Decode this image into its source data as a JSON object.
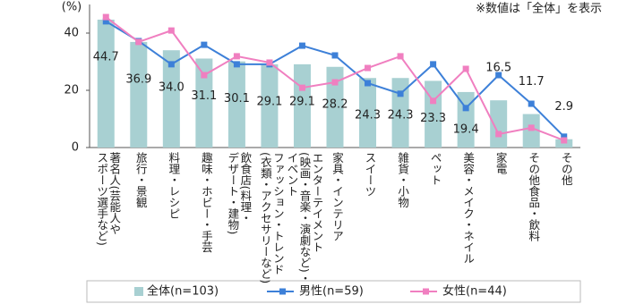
{
  "chart_data": {
    "type": "bar-line",
    "y_label": "(%)",
    "note": "※数値は「全体」を表示",
    "categories": [
      "著名人(芸能人や\nスポーツ選手など)",
      "旅行・景観",
      "料理・レシピ",
      "趣味・ホビー・手芸",
      "飲食店(料理・\nデザート・建物)",
      "ファッション・トレンド\n(衣類・アクセサリーなど)",
      "エンターテイメント\n(映画・音楽・演劇など)・\nイベント",
      "家具・インテリア",
      "スイーツ",
      "雑貨・小物",
      "ペット",
      "美容・メイク・ネイル",
      "家電",
      "その他食品・飲料",
      "その他"
    ],
    "series": [
      {
        "name": "全体(n=103)",
        "type": "bar",
        "color": "#a8d0d2",
        "values": [
          44.7,
          36.9,
          34.0,
          31.1,
          30.1,
          29.1,
          29.1,
          28.2,
          24.3,
          24.3,
          23.3,
          19.4,
          16.5,
          11.7,
          2.9
        ],
        "value_labels": [
          "44.7",
          "36.9",
          "34.0",
          "31.1",
          "30.1",
          "29.1",
          "29.1",
          "28.2",
          "24.3",
          "24.3",
          "23.3",
          "19.4",
          "16.5",
          "11.7",
          "2.9"
        ]
      },
      {
        "name": "男性(n=59)",
        "type": "line",
        "marker": "square",
        "color": "#3d80d8",
        "values": [
          44.1,
          37.2,
          29.1,
          35.9,
          29.1,
          29.1,
          35.6,
          32.2,
          22.5,
          18.8,
          29.1,
          13.8,
          25.3,
          15.3,
          3.8
        ]
      },
      {
        "name": "女性(n=44)",
        "type": "line",
        "marker": "square",
        "color": "#f07fc0",
        "values": [
          45.6,
          36.9,
          40.9,
          25.3,
          31.9,
          29.7,
          20.9,
          22.8,
          27.8,
          31.9,
          16.3,
          27.5,
          4.7,
          6.9,
          2.5
        ]
      }
    ],
    "ylim": [
      0,
      50
    ],
    "yticks": [
      0,
      20,
      40
    ],
    "grid": false
  }
}
